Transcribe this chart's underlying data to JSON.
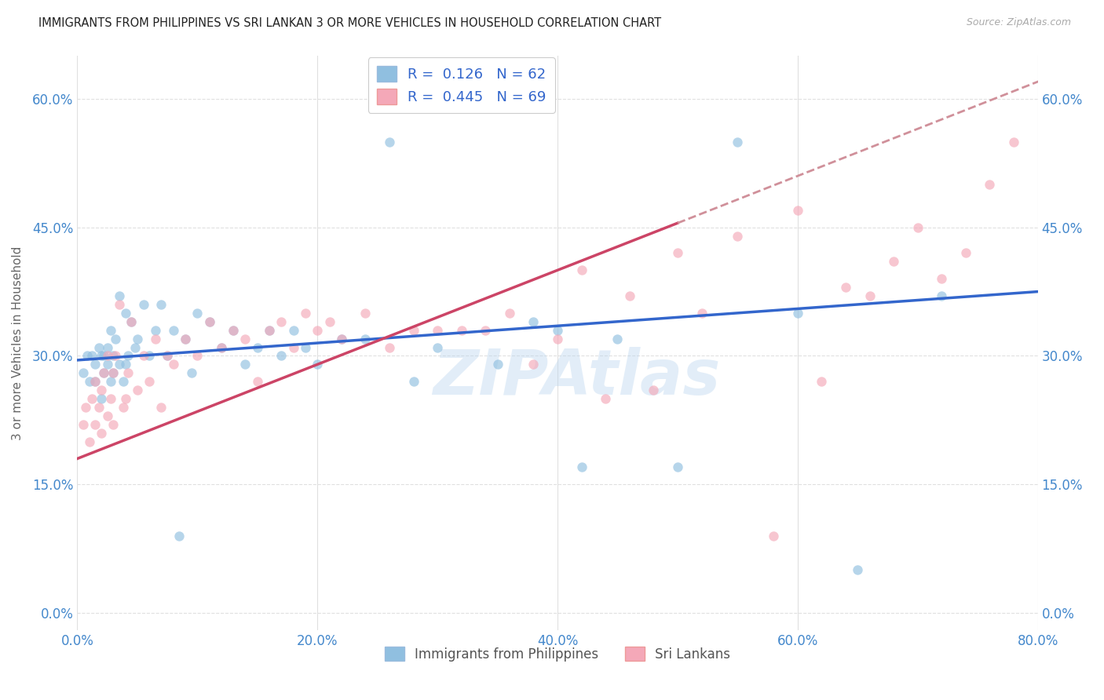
{
  "title": "IMMIGRANTS FROM PHILIPPINES VS SRI LANKAN 3 OR MORE VEHICLES IN HOUSEHOLD CORRELATION CHART",
  "source": "Source: ZipAtlas.com",
  "ylabel": "3 or more Vehicles in Household",
  "xlabel_ticks": [
    "0.0%",
    "20.0%",
    "40.0%",
    "60.0%",
    "80.0%"
  ],
  "ylabel_ticks": [
    "0.0%",
    "15.0%",
    "30.0%",
    "45.0%",
    "60.0%"
  ],
  "xlim": [
    0.0,
    0.8
  ],
  "ylim": [
    -0.02,
    0.65
  ],
  "legend_label1": "Immigrants from Philippines",
  "legend_label2": "Sri Lankans",
  "R1": "0.126",
  "N1": "62",
  "R2": "0.445",
  "N2": "69",
  "color1": "#90bfe0",
  "color2": "#f4a8b8",
  "line_color1": "#3366cc",
  "line_color2": "#cc4466",
  "line_dash_color": "#d0909a",
  "dot_alpha": 0.65,
  "dot_size": 80,
  "background_color": "#ffffff",
  "grid_color": "#e0e0e0",
  "title_color": "#222222",
  "source_color": "#aaaaaa",
  "legend_text_color": "#3366cc",
  "watermark": "ZIPAtlas",
  "philippines_x": [
    0.005,
    0.008,
    0.01,
    0.012,
    0.015,
    0.015,
    0.018,
    0.02,
    0.02,
    0.022,
    0.022,
    0.025,
    0.025,
    0.028,
    0.028,
    0.03,
    0.03,
    0.032,
    0.035,
    0.035,
    0.038,
    0.04,
    0.04,
    0.042,
    0.045,
    0.048,
    0.05,
    0.055,
    0.06,
    0.065,
    0.07,
    0.075,
    0.08,
    0.085,
    0.09,
    0.095,
    0.1,
    0.11,
    0.12,
    0.13,
    0.14,
    0.15,
    0.16,
    0.17,
    0.18,
    0.19,
    0.2,
    0.22,
    0.24,
    0.26,
    0.28,
    0.3,
    0.35,
    0.38,
    0.4,
    0.42,
    0.45,
    0.5,
    0.55,
    0.6,
    0.65,
    0.72
  ],
  "philippines_y": [
    0.28,
    0.3,
    0.27,
    0.3,
    0.27,
    0.29,
    0.31,
    0.25,
    0.3,
    0.28,
    0.3,
    0.29,
    0.31,
    0.27,
    0.33,
    0.28,
    0.3,
    0.32,
    0.29,
    0.37,
    0.27,
    0.29,
    0.35,
    0.3,
    0.34,
    0.31,
    0.32,
    0.36,
    0.3,
    0.33,
    0.36,
    0.3,
    0.33,
    0.09,
    0.32,
    0.28,
    0.35,
    0.34,
    0.31,
    0.33,
    0.29,
    0.31,
    0.33,
    0.3,
    0.33,
    0.31,
    0.29,
    0.32,
    0.32,
    0.55,
    0.27,
    0.31,
    0.29,
    0.34,
    0.33,
    0.17,
    0.32,
    0.17,
    0.55,
    0.35,
    0.05,
    0.37
  ],
  "srilanka_x": [
    0.005,
    0.007,
    0.01,
    0.012,
    0.015,
    0.015,
    0.018,
    0.02,
    0.02,
    0.022,
    0.025,
    0.025,
    0.028,
    0.03,
    0.03,
    0.032,
    0.035,
    0.038,
    0.04,
    0.042,
    0.045,
    0.05,
    0.055,
    0.06,
    0.065,
    0.07,
    0.075,
    0.08,
    0.09,
    0.1,
    0.11,
    0.12,
    0.13,
    0.14,
    0.15,
    0.16,
    0.17,
    0.18,
    0.19,
    0.2,
    0.21,
    0.22,
    0.24,
    0.26,
    0.28,
    0.3,
    0.32,
    0.34,
    0.36,
    0.38,
    0.4,
    0.42,
    0.44,
    0.46,
    0.48,
    0.5,
    0.52,
    0.55,
    0.58,
    0.6,
    0.62,
    0.64,
    0.66,
    0.68,
    0.7,
    0.72,
    0.74,
    0.76,
    0.78
  ],
  "srilanka_y": [
    0.22,
    0.24,
    0.2,
    0.25,
    0.22,
    0.27,
    0.24,
    0.21,
    0.26,
    0.28,
    0.23,
    0.3,
    0.25,
    0.22,
    0.28,
    0.3,
    0.36,
    0.24,
    0.25,
    0.28,
    0.34,
    0.26,
    0.3,
    0.27,
    0.32,
    0.24,
    0.3,
    0.29,
    0.32,
    0.3,
    0.34,
    0.31,
    0.33,
    0.32,
    0.27,
    0.33,
    0.34,
    0.31,
    0.35,
    0.33,
    0.34,
    0.32,
    0.35,
    0.31,
    0.33,
    0.33,
    0.33,
    0.33,
    0.35,
    0.29,
    0.32,
    0.4,
    0.25,
    0.37,
    0.26,
    0.42,
    0.35,
    0.44,
    0.09,
    0.47,
    0.27,
    0.38,
    0.37,
    0.41,
    0.45,
    0.39,
    0.42,
    0.5,
    0.55
  ]
}
